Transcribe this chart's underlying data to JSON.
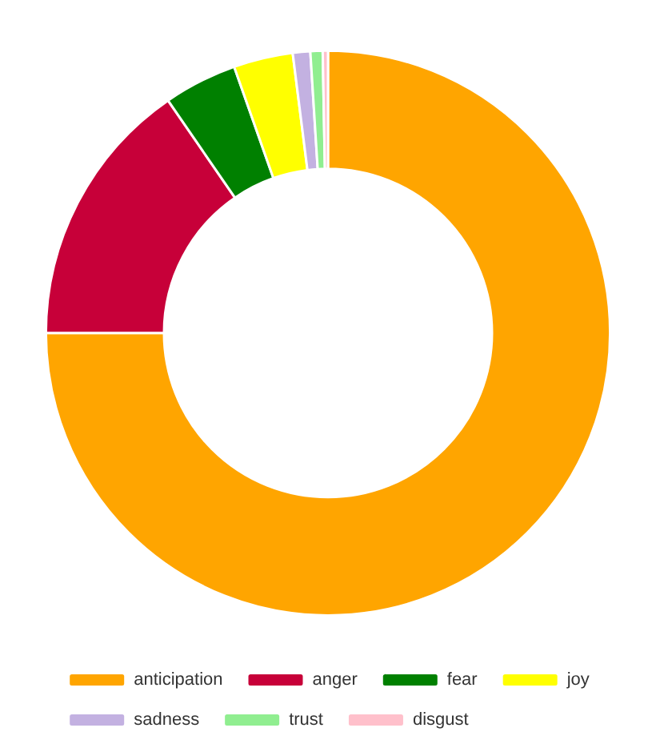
{
  "chart_data": {
    "type": "donut",
    "categories": [
      "anticipation",
      "anger",
      "fear",
      "joy",
      "sadness",
      "trust",
      "disgust"
    ],
    "values": [
      75,
      15.4,
      4.2,
      3.4,
      1.0,
      0.7,
      0.3
    ],
    "colors": [
      "#ffa500",
      "#c70039",
      "#008000",
      "#ffff00",
      "#c3b1e1",
      "#90ee90",
      "#ffc0cb"
    ],
    "legend": "bottom"
  }
}
